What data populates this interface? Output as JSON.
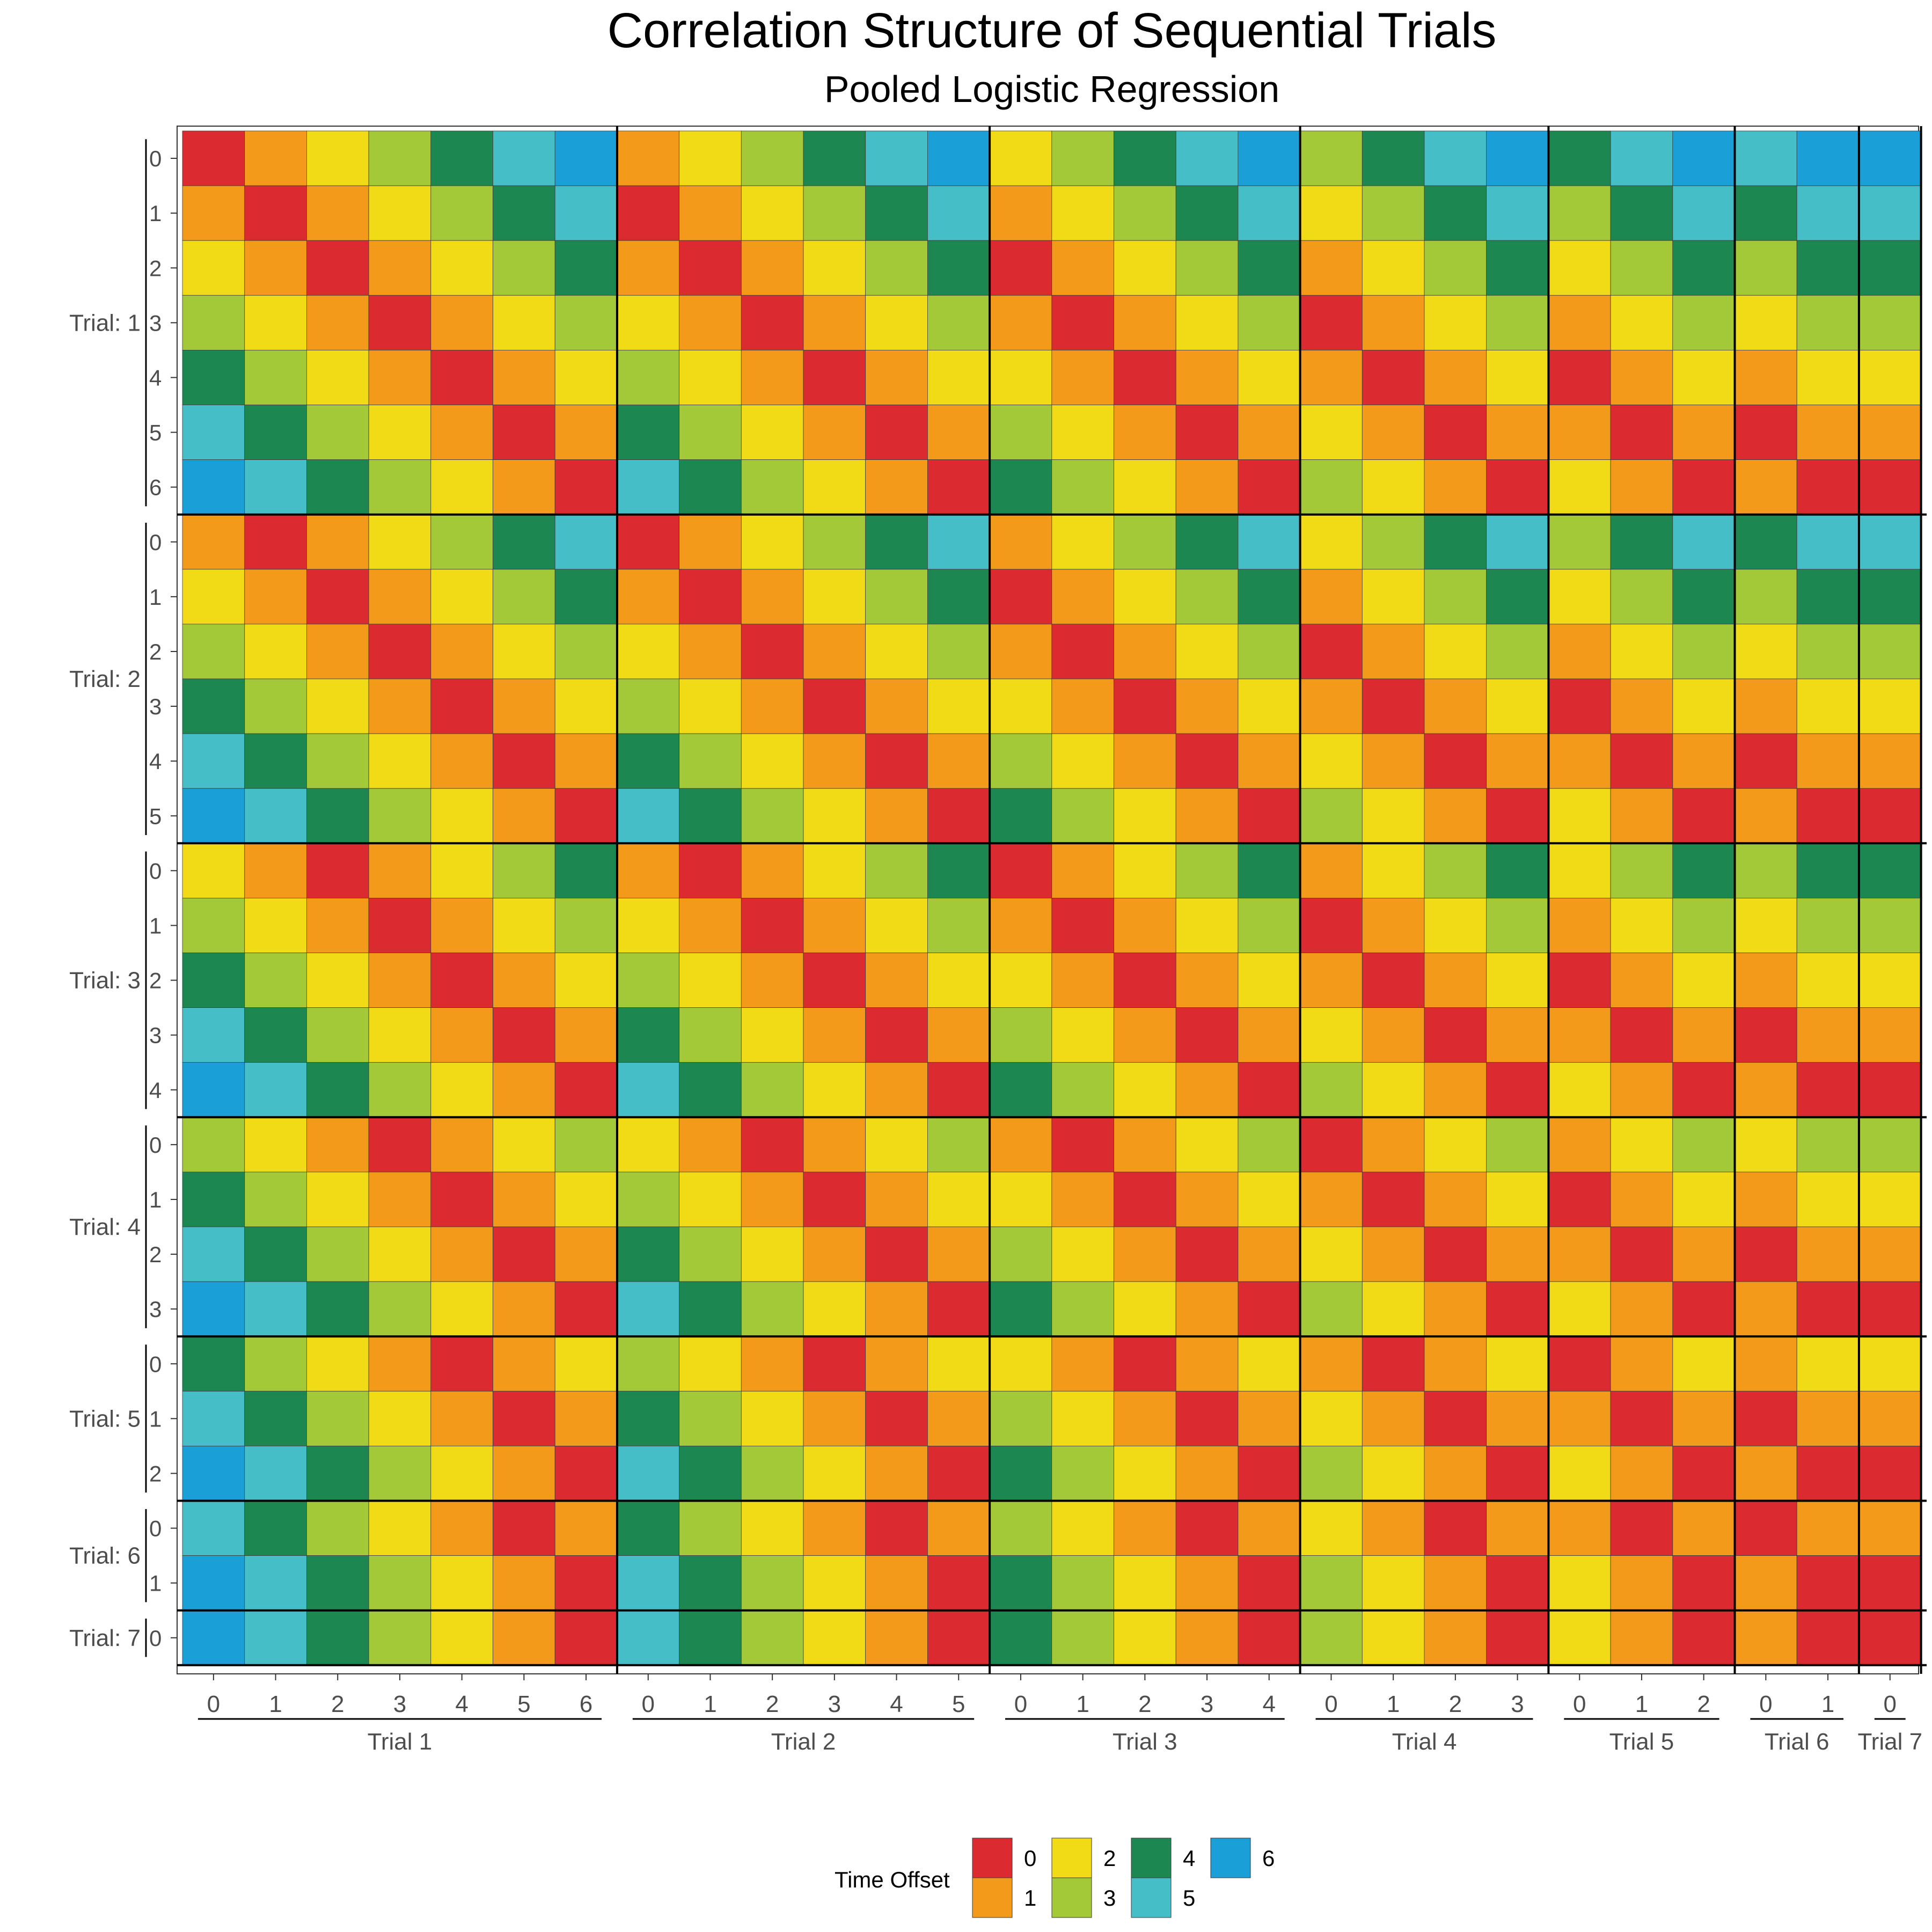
{
  "chart_data": {
    "type": "heatmap",
    "title": "Correlation Structure of Sequential Trials",
    "subtitle": "Pooled Logistic Regression",
    "x_groups": [
      {
        "label": "Trial 1",
        "ticks": [
          "0",
          "1",
          "2",
          "3",
          "4",
          "5",
          "6"
        ]
      },
      {
        "label": "Trial 2",
        "ticks": [
          "0",
          "1",
          "2",
          "3",
          "4",
          "5"
        ]
      },
      {
        "label": "Trial 3",
        "ticks": [
          "0",
          "1",
          "2",
          "3",
          "4"
        ]
      },
      {
        "label": "Trial 4",
        "ticks": [
          "0",
          "1",
          "2",
          "3"
        ]
      },
      {
        "label": "Trial 5",
        "ticks": [
          "0",
          "1",
          "2"
        ]
      },
      {
        "label": "Trial 6",
        "ticks": [
          "0",
          "1"
        ]
      },
      {
        "label": "Trial 7",
        "ticks": [
          "0"
        ]
      }
    ],
    "y_groups": [
      {
        "label": "Trial: 1",
        "ticks": [
          "0",
          "1",
          "2",
          "3",
          "4",
          "5",
          "6"
        ]
      },
      {
        "label": "Trial: 2",
        "ticks": [
          "0",
          "1",
          "2",
          "3",
          "4",
          "5"
        ]
      },
      {
        "label": "Trial: 3",
        "ticks": [
          "0",
          "1",
          "2",
          "3",
          "4"
        ]
      },
      {
        "label": "Trial: 4",
        "ticks": [
          "0",
          "1",
          "2",
          "3"
        ]
      },
      {
        "label": "Trial: 5",
        "ticks": [
          "0",
          "1",
          "2"
        ]
      },
      {
        "label": "Trial: 6",
        "ticks": [
          "0",
          "1"
        ]
      },
      {
        "label": "Trial: 7",
        "ticks": [
          "0"
        ]
      }
    ],
    "value_rule": "Time Offset = |(x trial - 1 + x time) - (y trial - 1 + y time)|",
    "legend": {
      "title": "Time Offset",
      "position": "bottom",
      "levels": [
        "0",
        "1",
        "2",
        "3",
        "4",
        "5",
        "6"
      ]
    },
    "colors": [
      "#dc2b30",
      "#f39a1b",
      "#f1db17",
      "#a3c838",
      "#1c8751",
      "#46bec8",
      "#1b9fd7"
    ]
  }
}
